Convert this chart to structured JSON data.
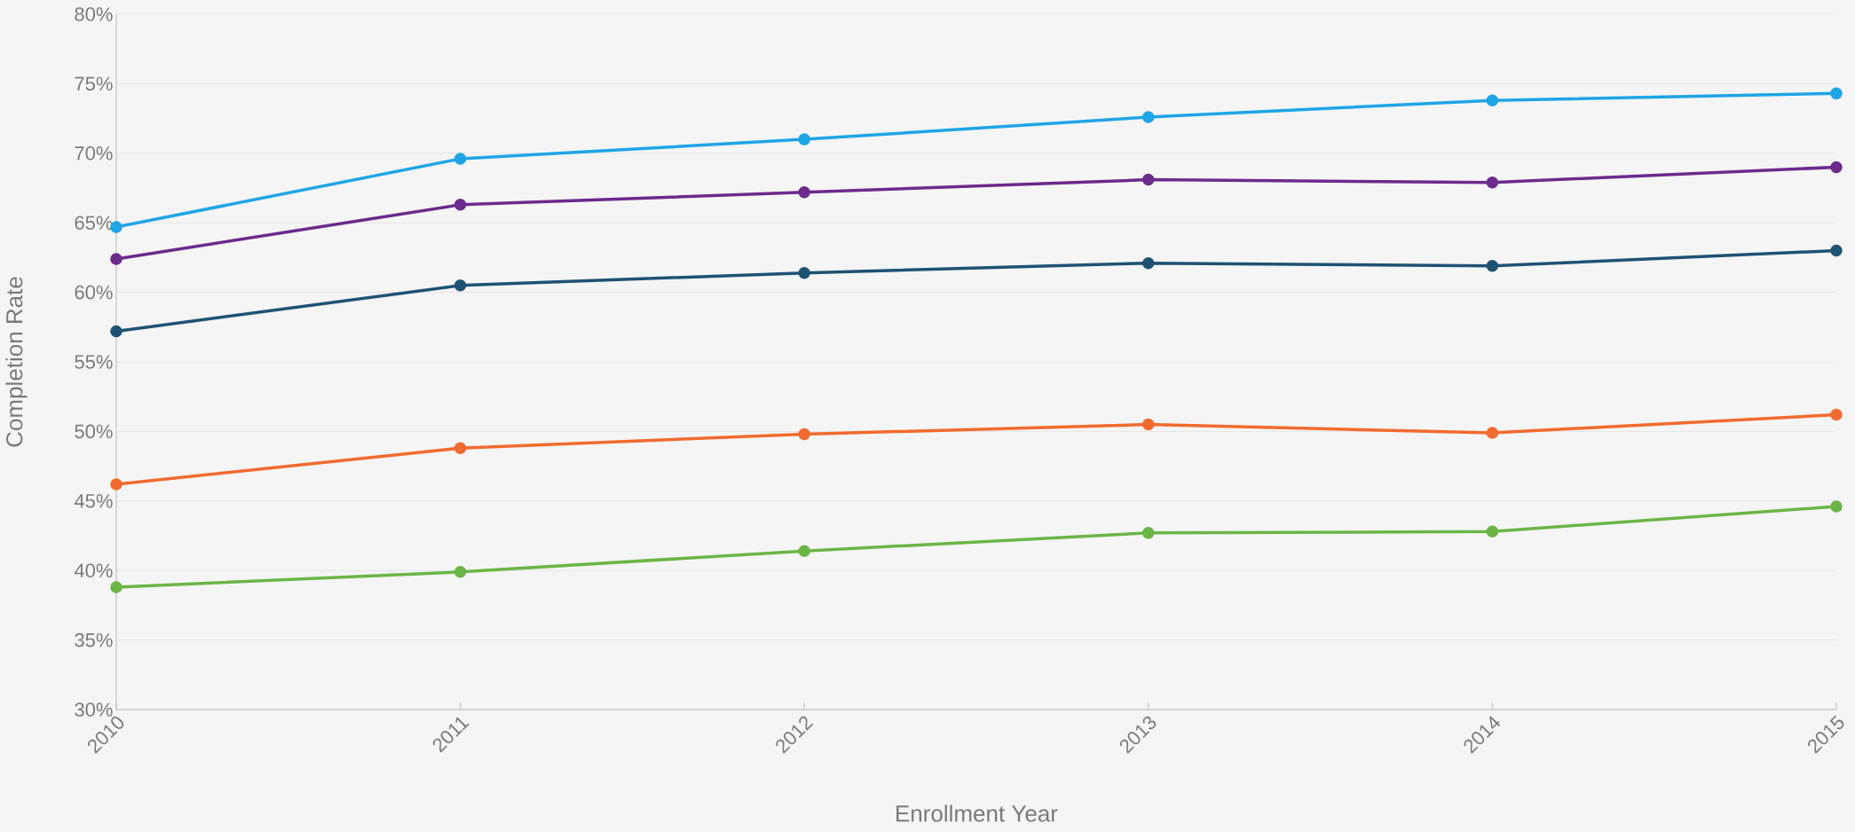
{
  "chart_data": {
    "type": "line",
    "xlabel": "Enrollment Year",
    "ylabel": "Completion Rate",
    "categories": [
      "2010",
      "2011",
      "2012",
      "2013",
      "2014",
      "2015"
    ],
    "series": [
      {
        "color": "#1ea5e6",
        "values": [
          64.7,
          69.6,
          71.0,
          72.6,
          73.8,
          74.3
        ]
      },
      {
        "color": "#6b2a8c",
        "values": [
          62.4,
          66.3,
          67.2,
          68.1,
          67.9,
          69.0
        ]
      },
      {
        "color": "#1e5272",
        "values": [
          57.2,
          60.5,
          61.4,
          62.1,
          61.9,
          63.0
        ]
      },
      {
        "color": "#f26a2e",
        "values": [
          46.2,
          48.8,
          49.8,
          50.5,
          49.9,
          51.2
        ]
      },
      {
        "color": "#6bb545",
        "values": [
          38.8,
          39.9,
          41.4,
          42.7,
          42.8,
          44.6
        ]
      }
    ],
    "ylim": [
      30,
      80
    ],
    "yticks": [
      {
        "value": 30,
        "label": "30%"
      },
      {
        "value": 35,
        "label": "35%"
      },
      {
        "value": 40,
        "label": "40%"
      },
      {
        "value": 45,
        "label": "45%"
      },
      {
        "value": 50,
        "label": "50%"
      },
      {
        "value": 55,
        "label": "55%"
      },
      {
        "value": 60,
        "label": "60%"
      },
      {
        "value": 65,
        "label": "65%"
      },
      {
        "value": 70,
        "label": "70%"
      },
      {
        "value": 75,
        "label": "75%"
      },
      {
        "value": 80,
        "label": "80%"
      }
    ],
    "grid": "y",
    "marker": "circle",
    "line_style": "solid"
  }
}
